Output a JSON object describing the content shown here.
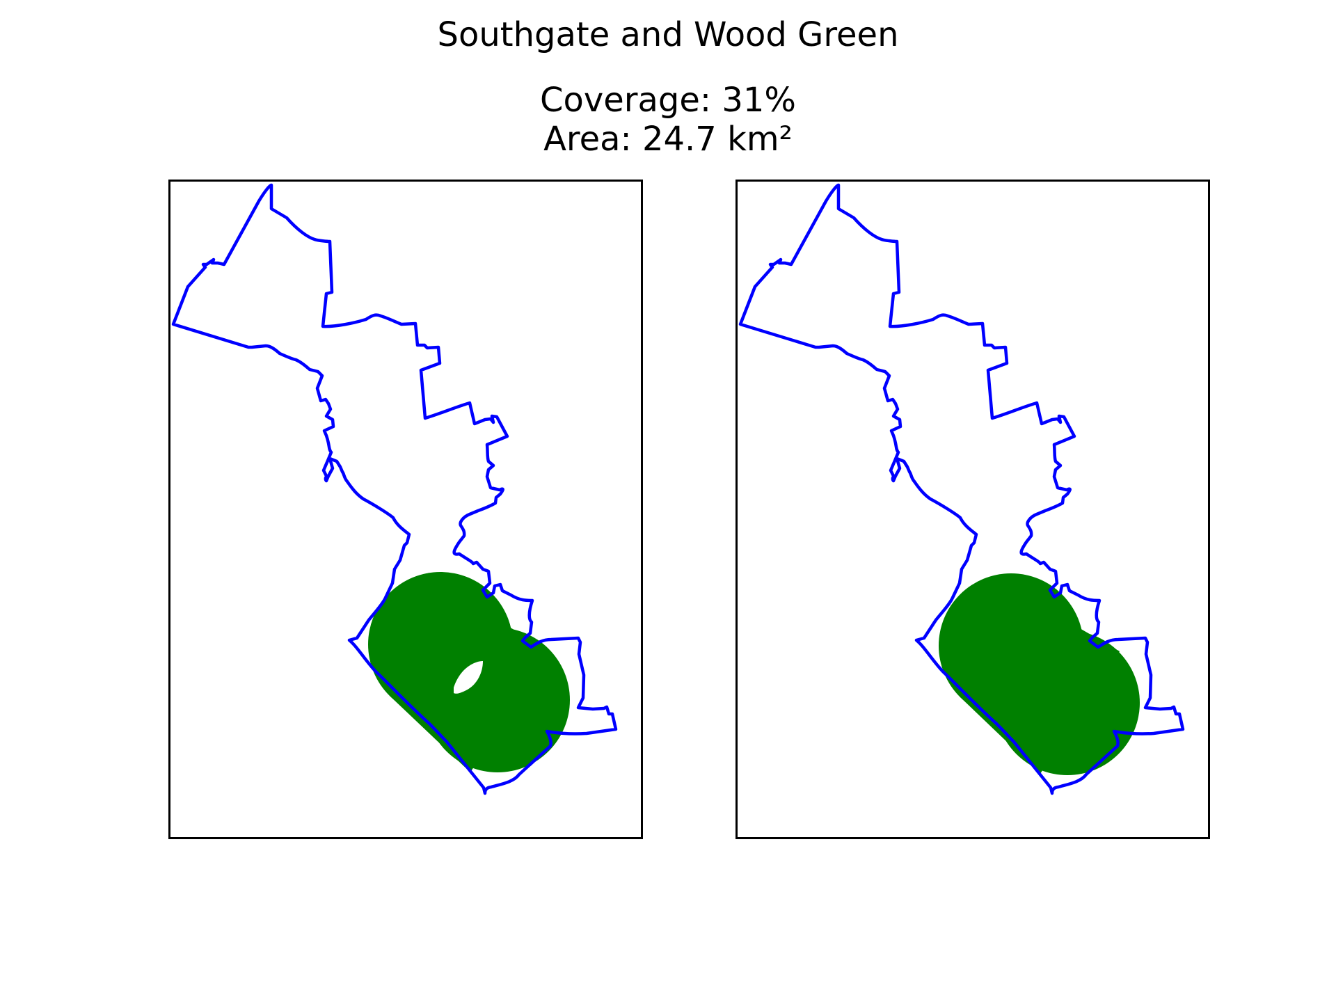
{
  "title": "Southgate and Wood Green",
  "coverage_text": "Coverage: 31%",
  "area_text": "Area: 24.7 km²",
  "colors": {
    "boundary": "#0000ff",
    "coverage_fill": "#008000",
    "frame": "#000000",
    "background": "#ffffff"
  },
  "panels": [
    {
      "name": "panel-left",
      "coverage_style": "overlapping circles with uncovered gap"
    },
    {
      "name": "panel-right",
      "coverage_style": "merged coverage area"
    }
  ]
}
